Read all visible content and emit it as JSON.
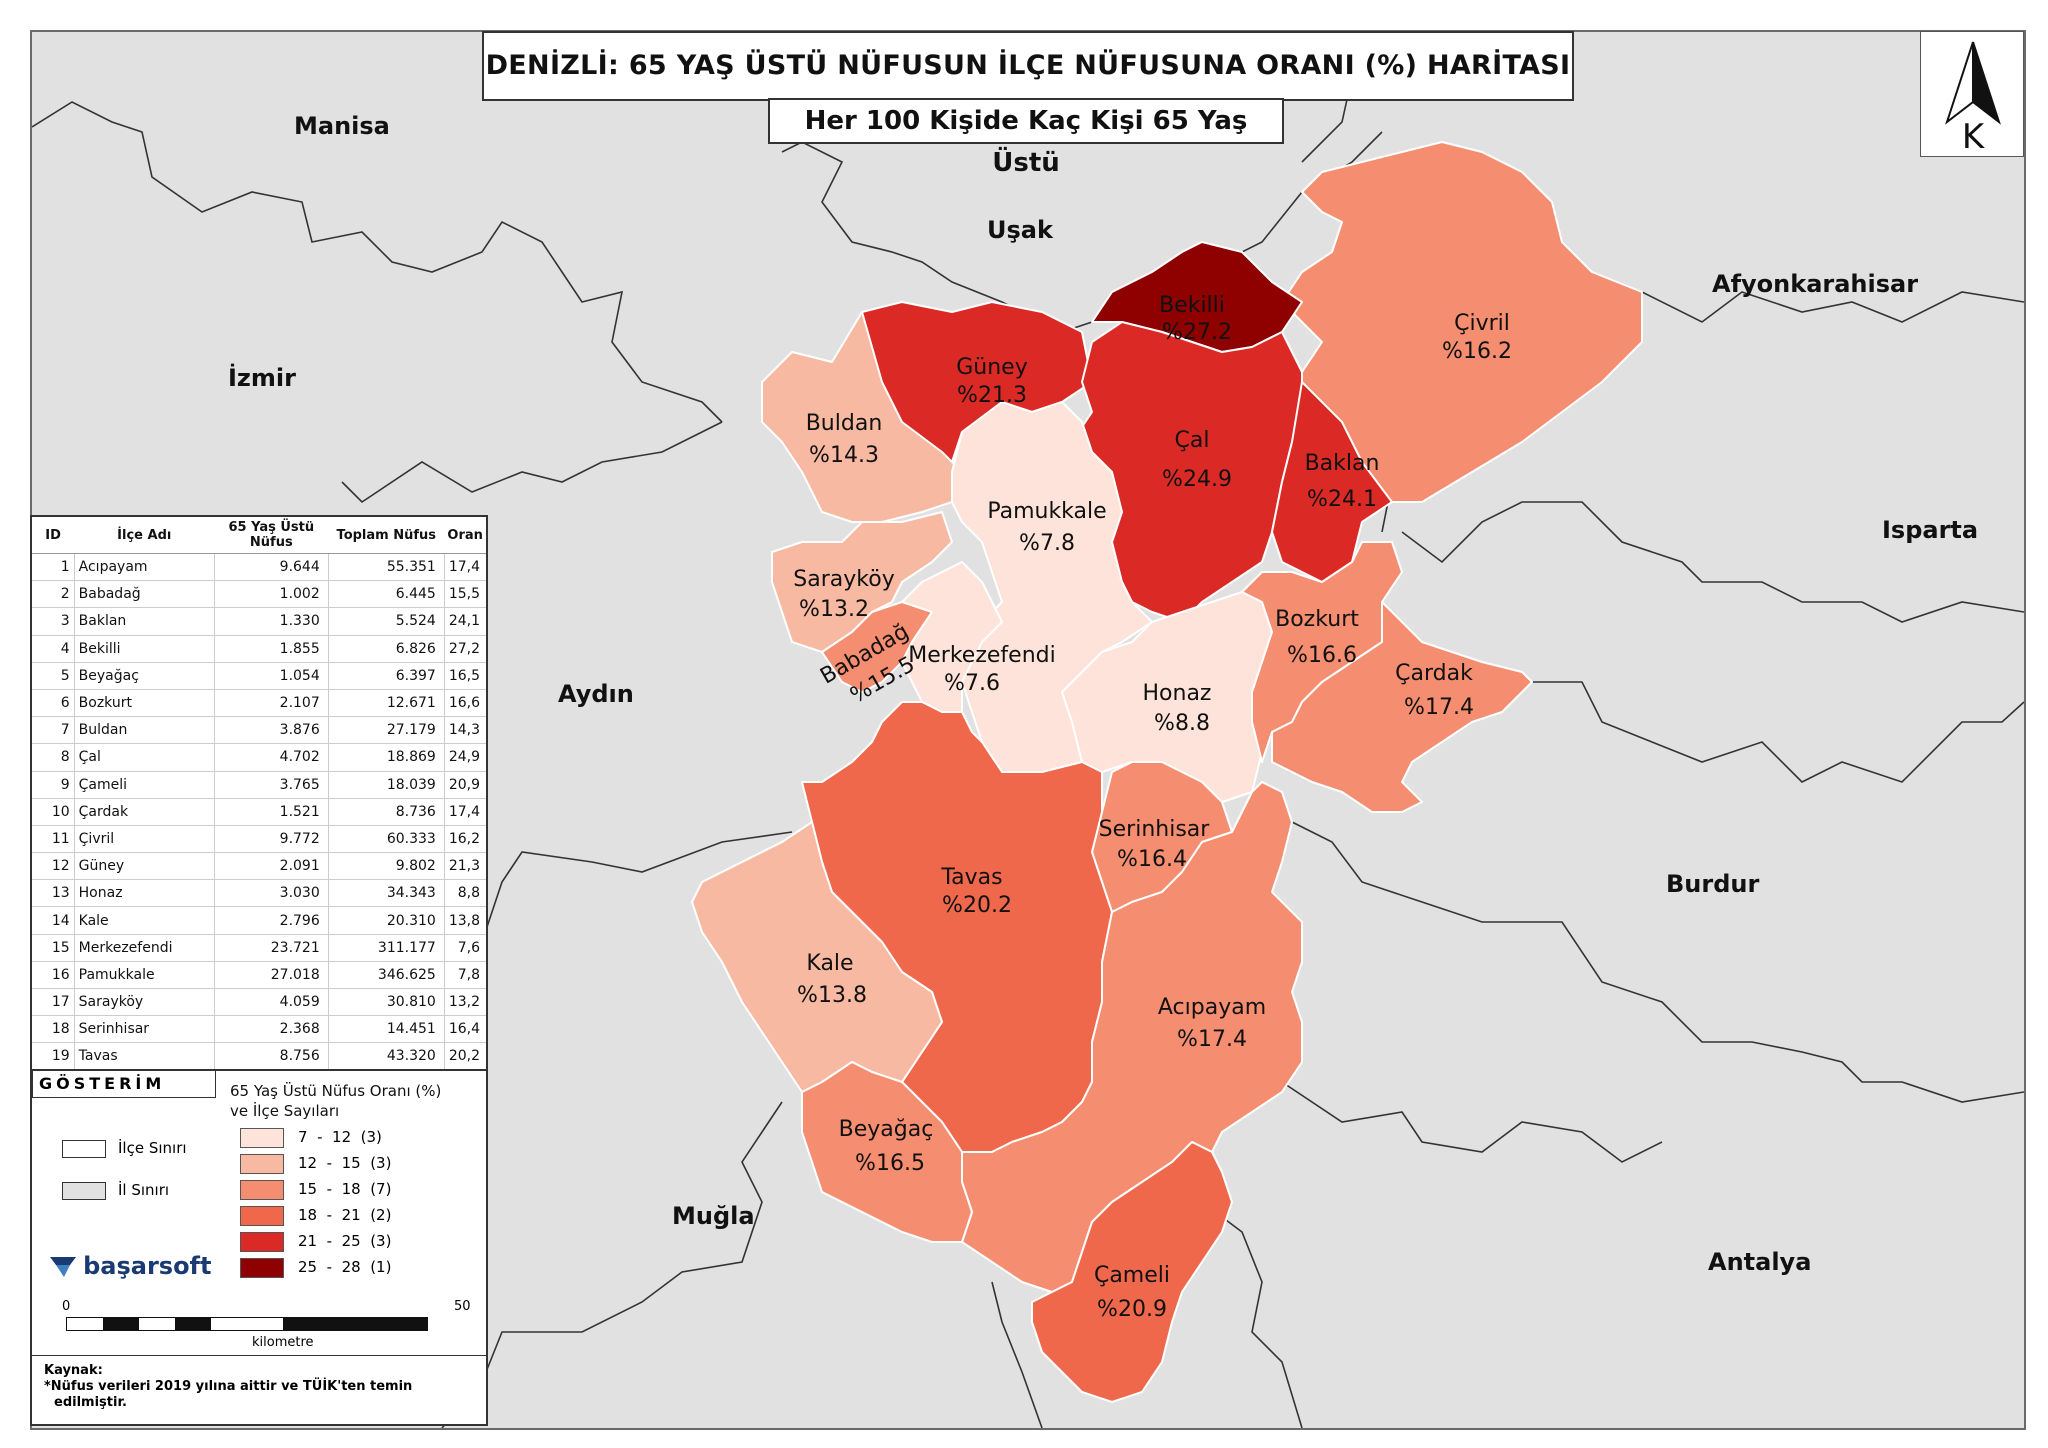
{
  "title": "DENİZLİ: 65 YAŞ ÜSTÜ NÜFUSUN İLÇE NÜFUSUNA ORANI (%) HARİTASI",
  "subtitle": "Her 100 Kişide Kaç Kişi 65 Yaş Üstü",
  "north_label": "K",
  "provinces": [
    "Manisa",
    "Uşak",
    "Afyonkarahisar",
    "İzmir",
    "Isparta",
    "Aydın",
    "Burdur",
    "Muğla",
    "Antalya"
  ],
  "district_labels": [
    {
      "name": "Bekilli",
      "value": "%27.2"
    },
    {
      "name": "Güney",
      "value": "%21.3"
    },
    {
      "name": "Çivril",
      "value": "%16.2"
    },
    {
      "name": "Buldan",
      "value": "%14.3"
    },
    {
      "name": "Çal",
      "value": "%24.9"
    },
    {
      "name": "Baklan",
      "value": "%24.1"
    },
    {
      "name": "Pamukkale",
      "value": "%7.8"
    },
    {
      "name": "Sarayköy",
      "value": "%13.2"
    },
    {
      "name": "Babadağ",
      "value": "%15.5"
    },
    {
      "name": "Merkezefendi",
      "value": "%7.6"
    },
    {
      "name": "Bozkurt",
      "value": "%16.6"
    },
    {
      "name": "Çardak",
      "value": "%17.4"
    },
    {
      "name": "Honaz",
      "value": "%8.8"
    },
    {
      "name": "Serinhisar",
      "value": "%16.4"
    },
    {
      "name": "Tavas",
      "value": "%20.2"
    },
    {
      "name": "Kale",
      "value": "%13.8"
    },
    {
      "name": "Acıpayam",
      "value": "%17.4"
    },
    {
      "name": "Beyağaç",
      "value": "%16.5"
    },
    {
      "name": "Çameli",
      "value": "%20.9"
    }
  ],
  "table": {
    "headers": [
      "ID",
      "İlçe Adı",
      "65 Yaş Üstü Nüfus",
      "Toplam Nüfus",
      "Oran"
    ],
    "rows": [
      [
        "1",
        "Acıpayam",
        "9.644",
        "55.351",
        "17,4"
      ],
      [
        "2",
        "Babadağ",
        "1.002",
        "6.445",
        "15,5"
      ],
      [
        "3",
        "Baklan",
        "1.330",
        "5.524",
        "24,1"
      ],
      [
        "4",
        "Bekilli",
        "1.855",
        "6.826",
        "27,2"
      ],
      [
        "5",
        "Beyağaç",
        "1.054",
        "6.397",
        "16,5"
      ],
      [
        "6",
        "Bozkurt",
        "2.107",
        "12.671",
        "16,6"
      ],
      [
        "7",
        "Buldan",
        "3.876",
        "27.179",
        "14,3"
      ],
      [
        "8",
        "Çal",
        "4.702",
        "18.869",
        "24,9"
      ],
      [
        "9",
        "Çameli",
        "3.765",
        "18.039",
        "20,9"
      ],
      [
        "10",
        "Çardak",
        "1.521",
        "8.736",
        "17,4"
      ],
      [
        "11",
        "Çivril",
        "9.772",
        "60.333",
        "16,2"
      ],
      [
        "12",
        "Güney",
        "2.091",
        "9.802",
        "21,3"
      ],
      [
        "13",
        "Honaz",
        "3.030",
        "34.343",
        "8,8"
      ],
      [
        "14",
        "Kale",
        "2.796",
        "20.310",
        "13,8"
      ],
      [
        "15",
        "Merkezefendi",
        "23.721",
        "311.177",
        "7,6"
      ],
      [
        "16",
        "Pamukkale",
        "27.018",
        "346.625",
        "7,8"
      ],
      [
        "17",
        "Sarayköy",
        "4.059",
        "30.810",
        "13,2"
      ],
      [
        "18",
        "Serinhisar",
        "2.368",
        "14.451",
        "16,4"
      ],
      [
        "19",
        "Tavas",
        "8.756",
        "43.320",
        "20,2"
      ]
    ]
  },
  "legend": {
    "heading": "GÖSTERİM",
    "title_line1": "65 Yaş Üstü Nüfus Oranı (%)",
    "title_line2": "ve İlçe Sayıları",
    "district_border": "İlçe Sınırı",
    "province_border": "İl Sınırı",
    "classes": [
      {
        "label": "7  -  12  (3)",
        "color": "#fde3d9"
      },
      {
        "label": "12  -  15  (3)",
        "color": "#f8b9a2"
      },
      {
        "label": "15  -  18  (7)",
        "color": "#f58e70"
      },
      {
        "label": "18  -  21  (2)",
        "color": "#ef684c"
      },
      {
        "label": "21  -  25  (3)",
        "color": "#db2a25"
      },
      {
        "label": "25  -  28  (1)",
        "color": "#8f0000"
      }
    ]
  },
  "logo": "başarsoft",
  "scale": {
    "start": "0",
    "end": "50",
    "unit": "kilometre"
  },
  "source": {
    "heading": "Kaynak:",
    "line1": "*Nüfus verileri 2019 yılına aittir ve TÜİK'ten temin",
    "line2": "edilmiştir."
  },
  "colors": {
    "background": "#e1e1e1",
    "border": "#333333"
  }
}
